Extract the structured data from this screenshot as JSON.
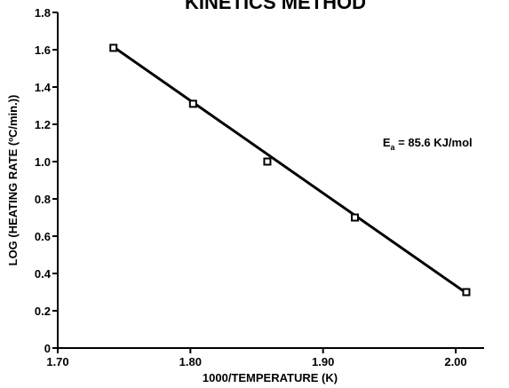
{
  "chart_data": {
    "type": "scatter",
    "title": "KINETICS METHOD",
    "xlabel": "1000/TEMPERATURE (K)",
    "ylabel": "LOG (HEATING RATE (ºC/min.))",
    "xlim": [
      1.7,
      2.05
    ],
    "ylim": [
      0,
      1.8
    ],
    "x_ticks": [
      "1.70",
      "1.80",
      "1.90",
      "2.00"
    ],
    "y_ticks": [
      "0",
      "0.2",
      "0.4",
      "0.6",
      "0.8",
      "1.0",
      "1.2",
      "1.4",
      "1.6",
      "1.8"
    ],
    "series": [
      {
        "x": [
          1.742,
          1.802,
          1.858,
          1.924,
          2.008
        ],
        "y": [
          1.61,
          1.31,
          1.0,
          0.7,
          0.3
        ],
        "marker": "open-square"
      }
    ],
    "fit_line": {
      "x": [
        1.742,
        2.008
      ],
      "y": [
        1.615,
        0.295
      ]
    },
    "annotation": {
      "prefix": "E",
      "subscript": "a",
      "text": " = 85.6 KJ/mol",
      "x": 1.945,
      "y": 1.08
    },
    "grid": false,
    "colors": {
      "line": "#000000",
      "marker_fill": "#ffffff"
    }
  }
}
